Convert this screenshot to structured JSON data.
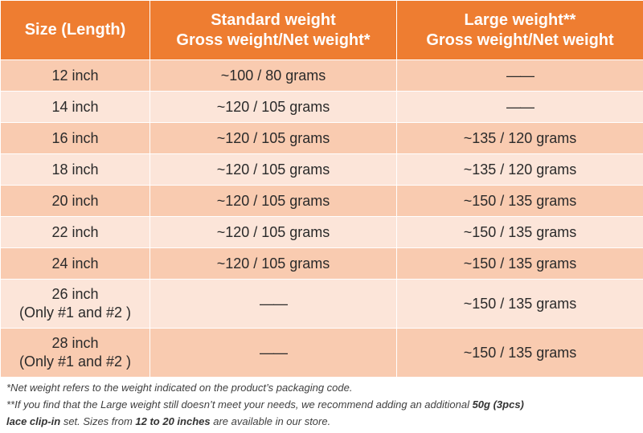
{
  "table": {
    "headers": [
      [
        "Size (Length)"
      ],
      [
        "Standard weight",
        "Gross weight/Net weight*"
      ],
      [
        "Large weight**",
        "Gross weight/Net weight"
      ]
    ],
    "rows": [
      {
        "size": [
          "12 inch"
        ],
        "standard": "~100 / 80 grams",
        "large": "——"
      },
      {
        "size": [
          "14 inch"
        ],
        "standard": "~120 / 105 grams",
        "large": "——"
      },
      {
        "size": [
          "16 inch"
        ],
        "standard": "~120 / 105 grams",
        "large": "~135 / 120 grams"
      },
      {
        "size": [
          "18 inch"
        ],
        "standard": "~120 / 105 grams",
        "large": "~135 / 120 grams"
      },
      {
        "size": [
          "20 inch"
        ],
        "standard": "~120 / 105 grams",
        "large": "~150 / 135 grams"
      },
      {
        "size": [
          "22 inch"
        ],
        "standard": "~120 / 105 grams",
        "large": "~150 / 135 grams"
      },
      {
        "size": [
          "24 inch"
        ],
        "standard": "~120 / 105 grams",
        "large": "~150 / 135 grams"
      },
      {
        "size": [
          "26 inch",
          "(Only #1 and #2 )"
        ],
        "standard": "——",
        "large": "~150 / 135 grams"
      },
      {
        "size": [
          "28 inch",
          "(Only #1 and #2 )"
        ],
        "standard": "——",
        "large": "~150 / 135 grams"
      }
    ]
  },
  "notes": {
    "note1": "*Net weight refers to the weight indicated on the product’s packaging code.",
    "note2_part1": "**If you find that the Large weight still doesn’t meet your needs, we recommend adding an additional ",
    "note2_bold1": "50g (3pcs)",
    "note2_part2": "lace clip-in",
    "note2_part3": " set. Sizes from ",
    "note2_bold2": "12 to 20 inches",
    "note2_part4": " are available in our store."
  },
  "colors": {
    "header_bg": "#ee7d31",
    "row_dark": "#f9cbb0",
    "row_light": "#fce5d9"
  }
}
